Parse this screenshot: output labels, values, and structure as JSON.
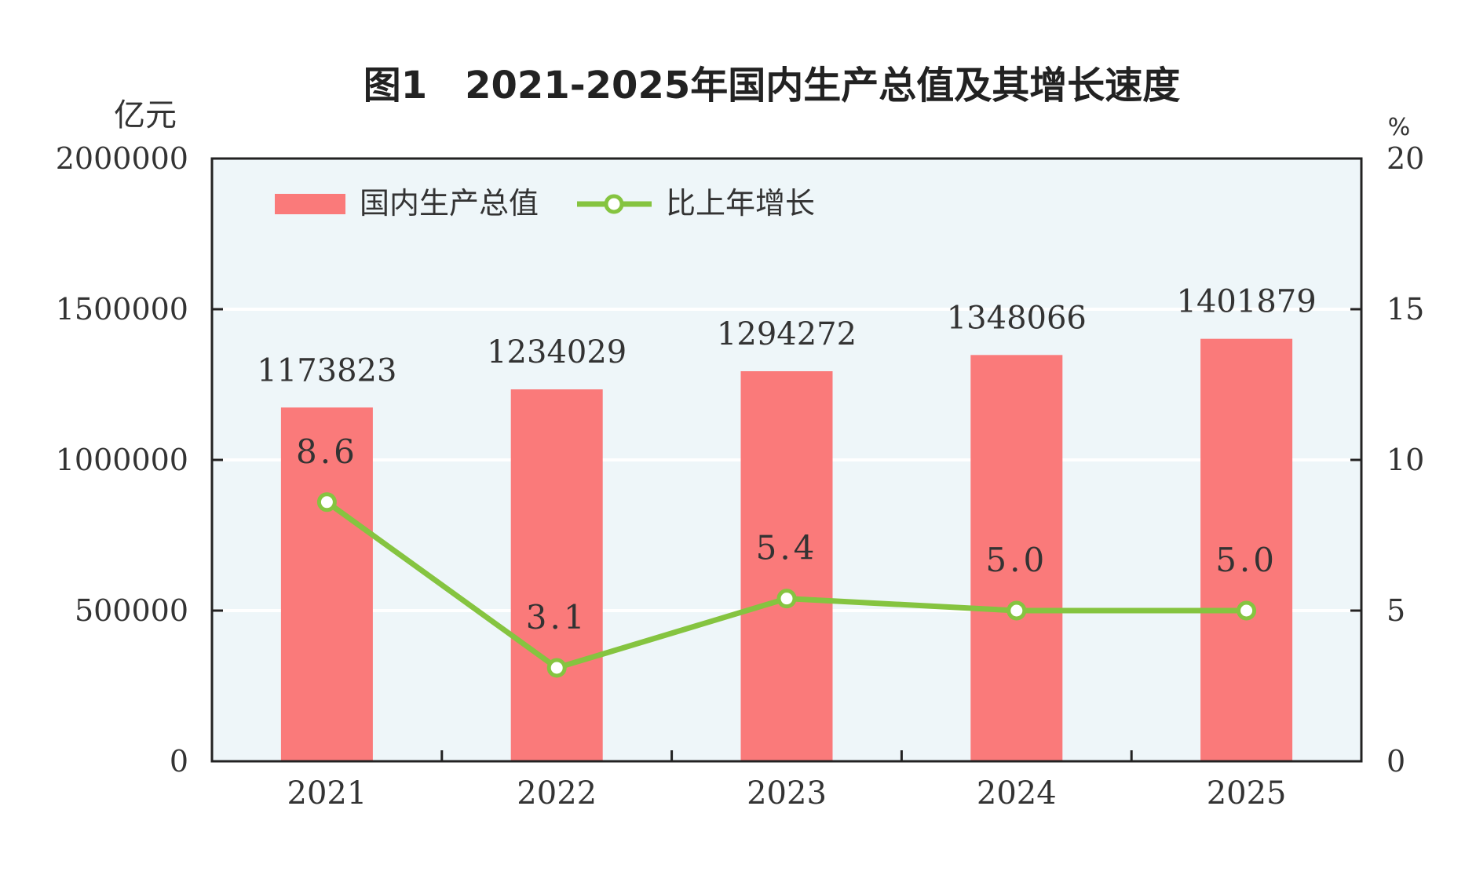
{
  "chart_data": {
    "type": "bar",
    "title": "图1　2021-2025年国内生产总值及其增长速度",
    "categories": [
      "2021",
      "2022",
      "2023",
      "2024",
      "2025"
    ],
    "series": [
      {
        "name": "国内生产总值",
        "type": "bar",
        "axis": "left",
        "values": [
          1173823,
          1234029,
          1294272,
          1348066,
          1401879
        ],
        "labels": [
          "1173823",
          "1234029",
          "1294272",
          "1348066",
          "1401879"
        ],
        "color": "#fa7a7a"
      },
      {
        "name": "比上年增长",
        "type": "line",
        "axis": "right",
        "values": [
          8.6,
          3.1,
          5.4,
          5.0,
          5.0
        ],
        "labels": [
          "8.6",
          "3.1",
          "5.4",
          "5.0",
          "5.0"
        ],
        "color": "#85c440"
      }
    ],
    "left_axis": {
      "unit": "亿元",
      "range": [
        0,
        2000000
      ],
      "ticks": [
        0,
        500000,
        1000000,
        1500000,
        2000000
      ],
      "tick_labels": [
        "0",
        "500000",
        "1000000",
        "1500000",
        "2000000"
      ]
    },
    "right_axis": {
      "unit": "%",
      "range": [
        0,
        20
      ],
      "ticks": [
        0,
        5,
        10,
        15,
        20
      ],
      "tick_labels": [
        "0",
        "5",
        "10",
        "15",
        "20"
      ]
    },
    "grid": true,
    "legend_position": "top-left",
    "colors": {
      "plot_background": "#eef6f9",
      "grid": "#ffffff",
      "axis": "#222222",
      "text": "#333333",
      "marker_fill": "#ffffff"
    }
  }
}
